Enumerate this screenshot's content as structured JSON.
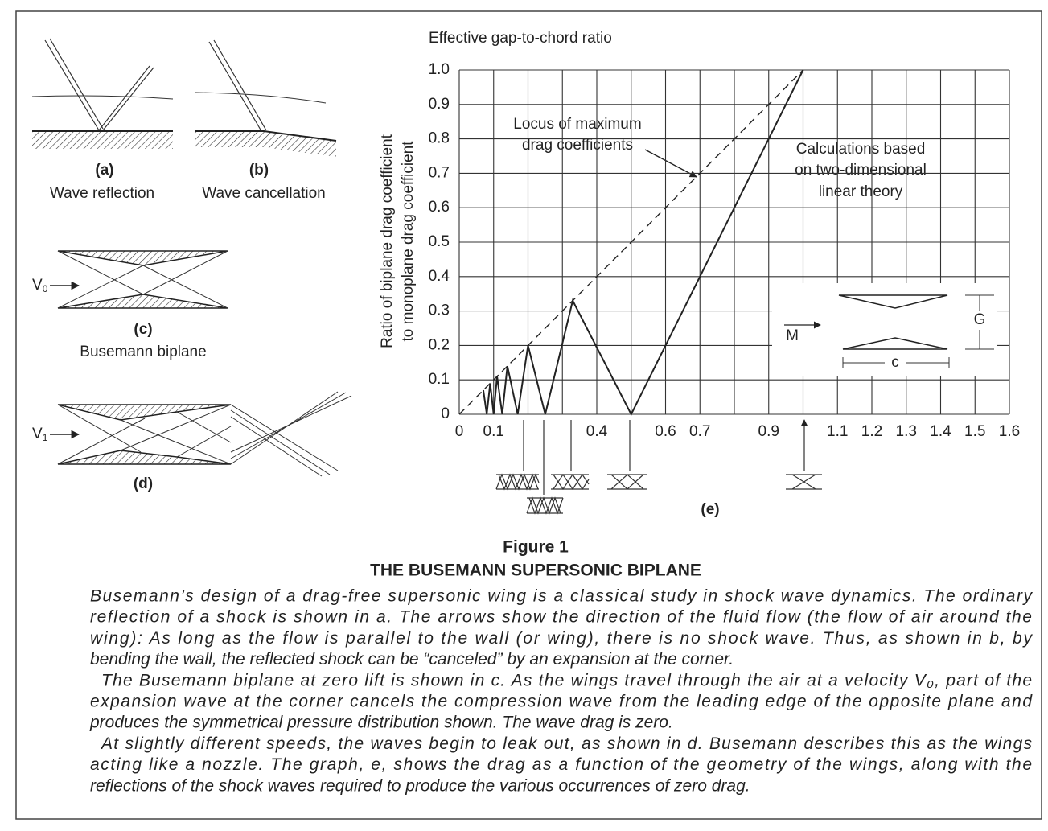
{
  "panels": {
    "a": {
      "label": "(a)",
      "caption": "Wave reflection"
    },
    "b": {
      "label": "(b)",
      "caption": "Wave cancellation"
    },
    "c": {
      "label": "(c)",
      "caption": "Busemann biplane",
      "velocity": {
        "symbol": "V",
        "subscript": "0"
      }
    },
    "d": {
      "label": "(d)",
      "velocity": {
        "symbol": "V",
        "subscript": "1"
      }
    }
  },
  "chart_data": {
    "type": "line",
    "panel_label": "(e)",
    "title": "Effective gap-to-chord ratio",
    "y_label": [
      "Ratio of biplane drag coefficient",
      "to monoplane drag coefficient"
    ],
    "series": [
      {
        "color": "#222222",
        "style": "solid",
        "x": [
          0.07,
          0.08,
          0.09,
          0.1,
          0.11,
          0.125,
          0.14,
          0.17,
          0.2,
          0.25,
          0.33,
          0.5,
          1.0
        ],
        "values": [
          0.07,
          0,
          0.09,
          0,
          0.11,
          0,
          0.14,
          0,
          0.2,
          0,
          0.33,
          0,
          1.0
        ]
      },
      {
        "color": "#222222",
        "style": "dashed",
        "x": [
          0,
          1.0
        ],
        "values": [
          0,
          1.0
        ]
      }
    ],
    "xlim": [
      0,
      1.6
    ],
    "xticks": [
      0,
      0.1,
      {
        "value": 0.2,
        "label": null
      },
      {
        "value": 0.3,
        "label": null
      },
      0.4,
      {
        "value": 0.5,
        "label": null
      },
      0.6,
      0.7,
      {
        "value": 0.8,
        "label": null
      },
      0.9,
      {
        "value": 1.0,
        "label": null
      },
      1.1,
      1.2,
      1.3,
      1.4,
      1.5,
      1.6
    ],
    "ylim": [
      0,
      1.0
    ],
    "yticks": [
      0,
      0.1,
      0.2,
      0.3,
      0.4,
      0.5,
      0.6,
      0.7,
      0.8,
      0.9,
      {
        "value": 1.0,
        "label": "1.0"
      }
    ],
    "grid": true,
    "annotations": [
      {
        "lines": [
          "Locus of maximum",
          "drag coefficients"
        ]
      },
      {
        "lines": [
          "Calculations based",
          "on two-dimensional",
          "linear theory"
        ]
      }
    ],
    "inset": {
      "flow": "M",
      "gap": "G",
      "chord": "c"
    }
  },
  "caption": {
    "figure": "Figure 1",
    "title": "THE BUSEMANN SUPERSONIC BIPLANE",
    "paragraphs": [
      [
        "Busemann’s design of a drag-free supersonic wing is a classical study in shock wave dynamics. The ordinary",
        "reflection of a shock is shown in a. The arrows show the direction of the fluid flow (the flow of air around the",
        "wing): As long as the flow is parallel to the wall (or wing), there is no shock wave. Thus, as shown in b, by",
        "bending the wall, the reflected shock can be “canceled” by an expansion at the corner."
      ],
      [
        "The Busemann biplane at zero lift is shown in c. As the wings travel through the air at a velocity V₀, part of the",
        "expansion wave at the corner cancels the compression wave from the leading edge of the opposite plane and",
        "produces the symmetrical pressure distribution shown. The wave drag is zero."
      ],
      [
        "At slightly different speeds, the waves begin to leak out, as shown in d. Busemann describes this as the wings",
        "acting like a nozzle. The graph, e, shows the drag as a function of the geometry of the wings, along with the",
        "reflections of the shock waves required to produce the various occurrences of zero drag."
      ]
    ]
  }
}
